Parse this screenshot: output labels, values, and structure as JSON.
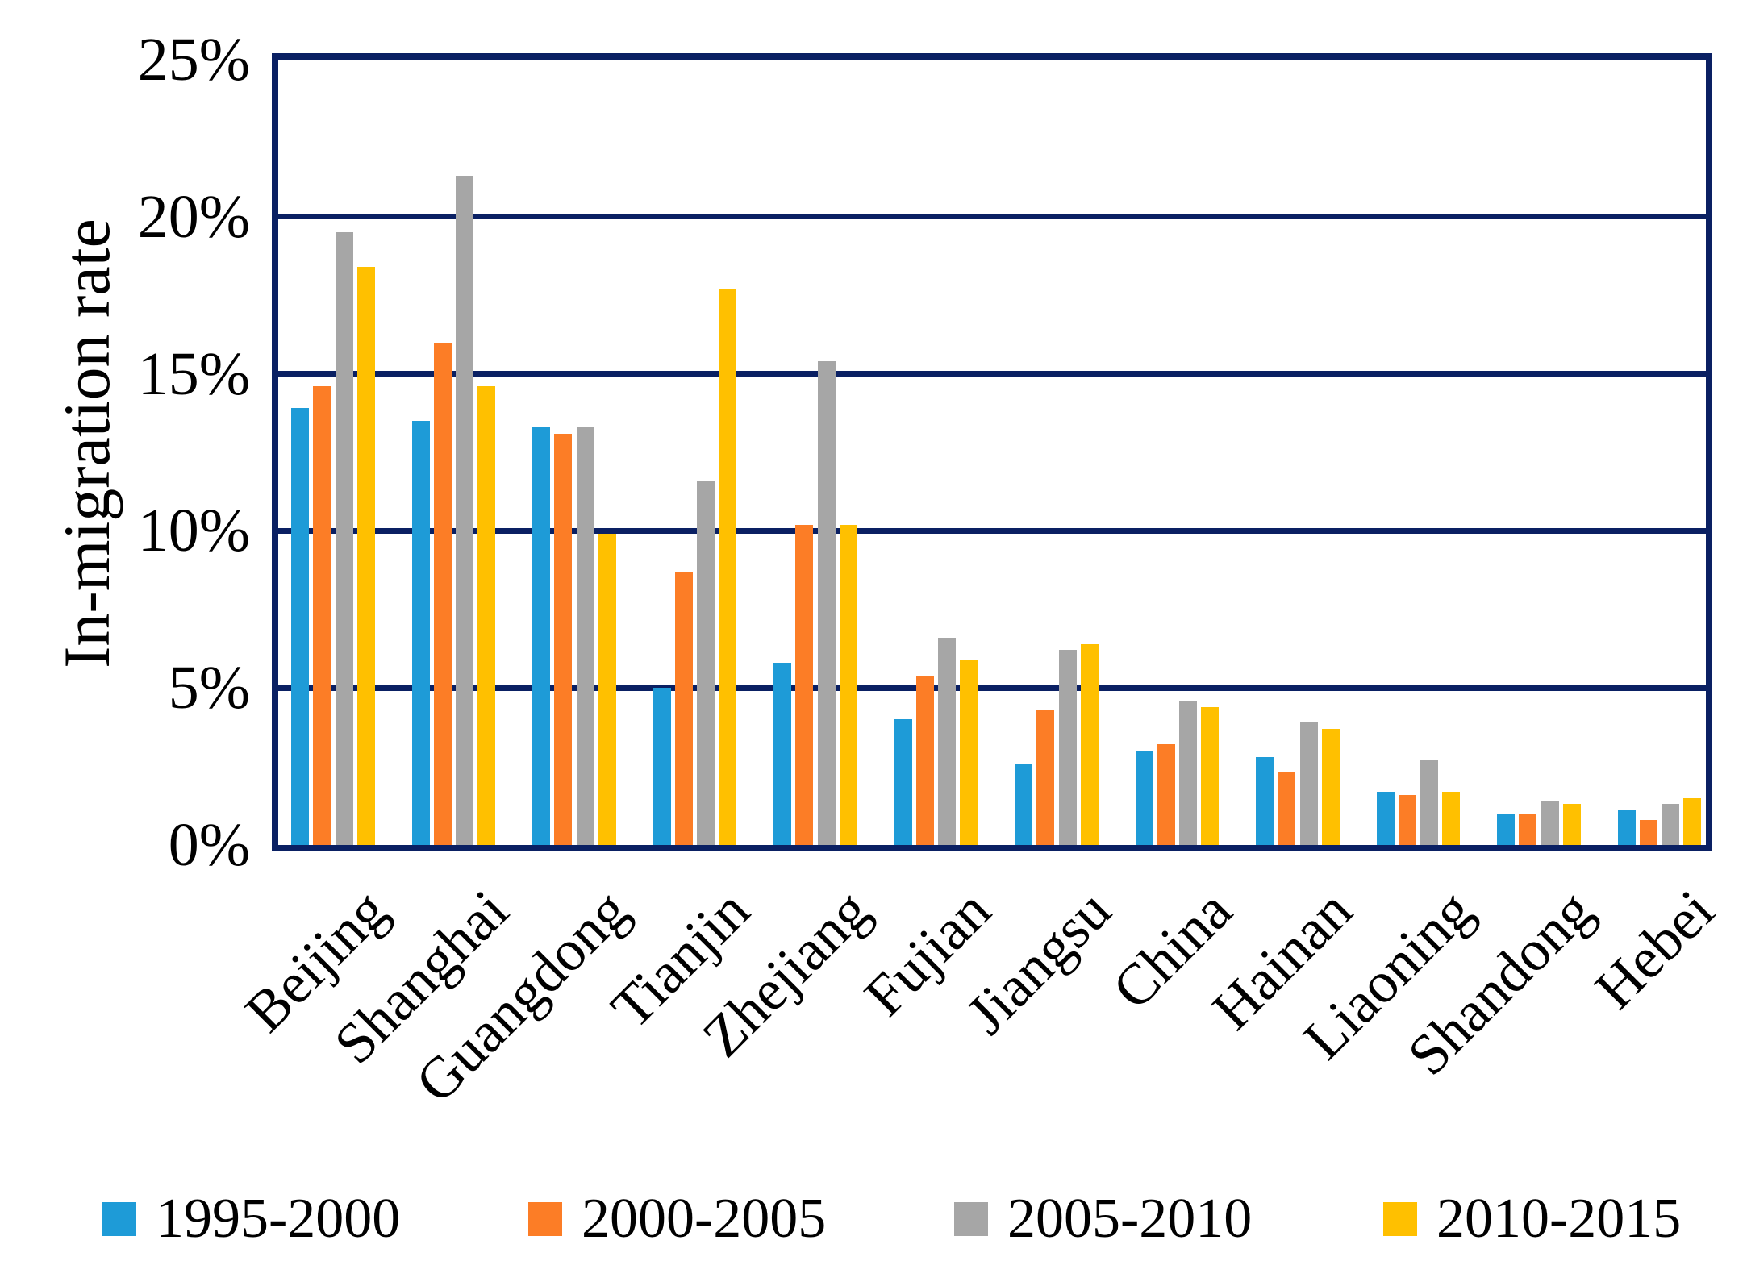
{
  "colors": {
    "axis_line": "#0A2063",
    "background": "#FFFFFF",
    "text": "#000000"
  },
  "chart_data": {
    "type": "bar",
    "title": "",
    "ylabel": "In-migration rate",
    "xlabel": "",
    "ylim": [
      0,
      25
    ],
    "grid": true,
    "legend_position": "bottom",
    "ytick_labels": [
      "25%",
      "20%",
      "15%",
      "10%",
      "5%",
      "0%"
    ],
    "ytick_values": [
      25,
      20,
      15,
      10,
      5,
      0
    ],
    "categories": [
      "Beijing",
      "Shanghai",
      "Guangdong",
      "Tianjin",
      "Zhejiang",
      "Fujian",
      "Jiangsu",
      "China",
      "Hainan",
      "Liaoning",
      "Shandong",
      "Hebei"
    ],
    "series": [
      {
        "name": "1995-2000",
        "color": "#1E9BD7",
        "values": [
          13.9,
          13.5,
          13.3,
          5.0,
          5.8,
          4.0,
          2.6,
          3.0,
          2.8,
          1.7,
          1.0,
          1.1
        ]
      },
      {
        "name": "2000-2005",
        "color": "#FC7D26",
        "values": [
          14.6,
          16.0,
          13.1,
          8.7,
          10.2,
          5.4,
          4.3,
          3.2,
          2.3,
          1.6,
          1.0,
          0.8
        ]
      },
      {
        "name": "2005-2010",
        "color": "#A6A6A6",
        "values": [
          19.5,
          21.3,
          13.3,
          11.6,
          15.4,
          6.6,
          6.2,
          4.6,
          3.9,
          2.7,
          1.4,
          1.3
        ]
      },
      {
        "name": "2010-2015",
        "color": "#FFC000",
        "values": [
          18.4,
          14.6,
          9.9,
          17.7,
          10.2,
          5.9,
          6.4,
          4.4,
          3.7,
          1.7,
          1.3,
          1.5
        ]
      }
    ]
  }
}
